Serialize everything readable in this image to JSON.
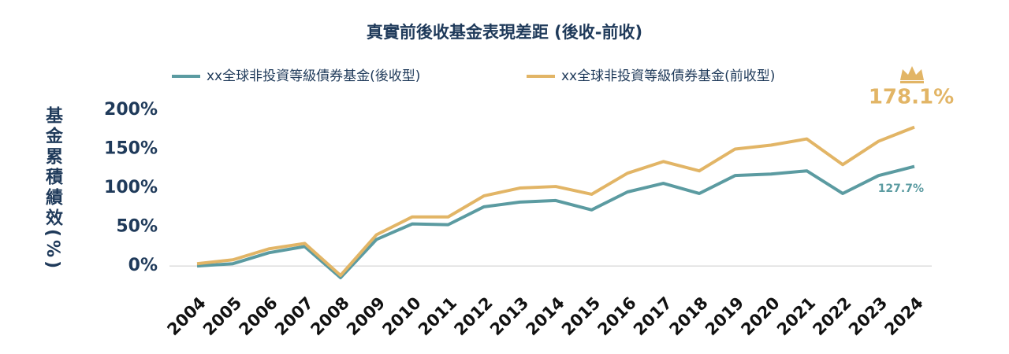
{
  "chart_data": {
    "type": "line",
    "title": "真實前後收基金表現差距 (後收-前收)",
    "y_label": "基金累積績效(%)",
    "categories": [
      "2004",
      "2005",
      "2006",
      "2007",
      "2008",
      "2009",
      "2010",
      "2011",
      "2012",
      "2013",
      "2014",
      "2015",
      "2016",
      "2017",
      "2018",
      "2019",
      "2020",
      "2021",
      "2022",
      "2023",
      "2024"
    ],
    "series": [
      {
        "name": "xx全球非投資等級債券基金(後收型)",
        "color": "#5b9ba1",
        "values": [
          0,
          3,
          17,
          25,
          -15,
          34,
          54,
          53,
          76,
          82,
          84,
          72,
          95,
          106,
          93,
          116,
          118,
          122,
          93,
          116,
          127.7
        ],
        "value_labels": [
          null,
          null,
          null,
          null,
          null,
          null,
          null,
          null,
          null,
          null,
          null,
          null,
          null,
          null,
          null,
          null,
          null,
          null,
          null,
          null,
          "127.7%"
        ]
      },
      {
        "name": "xx全球非投資等級債券基金(前收型)",
        "color": "#e2b566",
        "values": [
          3,
          8,
          22,
          29,
          -12,
          40,
          63,
          63,
          90,
          100,
          102,
          92,
          119,
          134,
          122,
          150,
          155,
          163,
          130,
          160,
          178.1
        ],
        "value_labels": [
          null,
          null,
          null,
          null,
          null,
          null,
          null,
          null,
          null,
          null,
          null,
          null,
          null,
          null,
          null,
          null,
          null,
          null,
          null,
          null,
          "178.1%"
        ]
      }
    ],
    "ylim": [
      -20,
      210
    ],
    "yticks": [
      {
        "value": 0,
        "label": "0%"
      },
      {
        "value": 50,
        "label": "50%"
      },
      {
        "value": 100,
        "label": "100%"
      },
      {
        "value": 150,
        "label": "150%"
      },
      {
        "value": 200,
        "label": "200%"
      }
    ]
  }
}
